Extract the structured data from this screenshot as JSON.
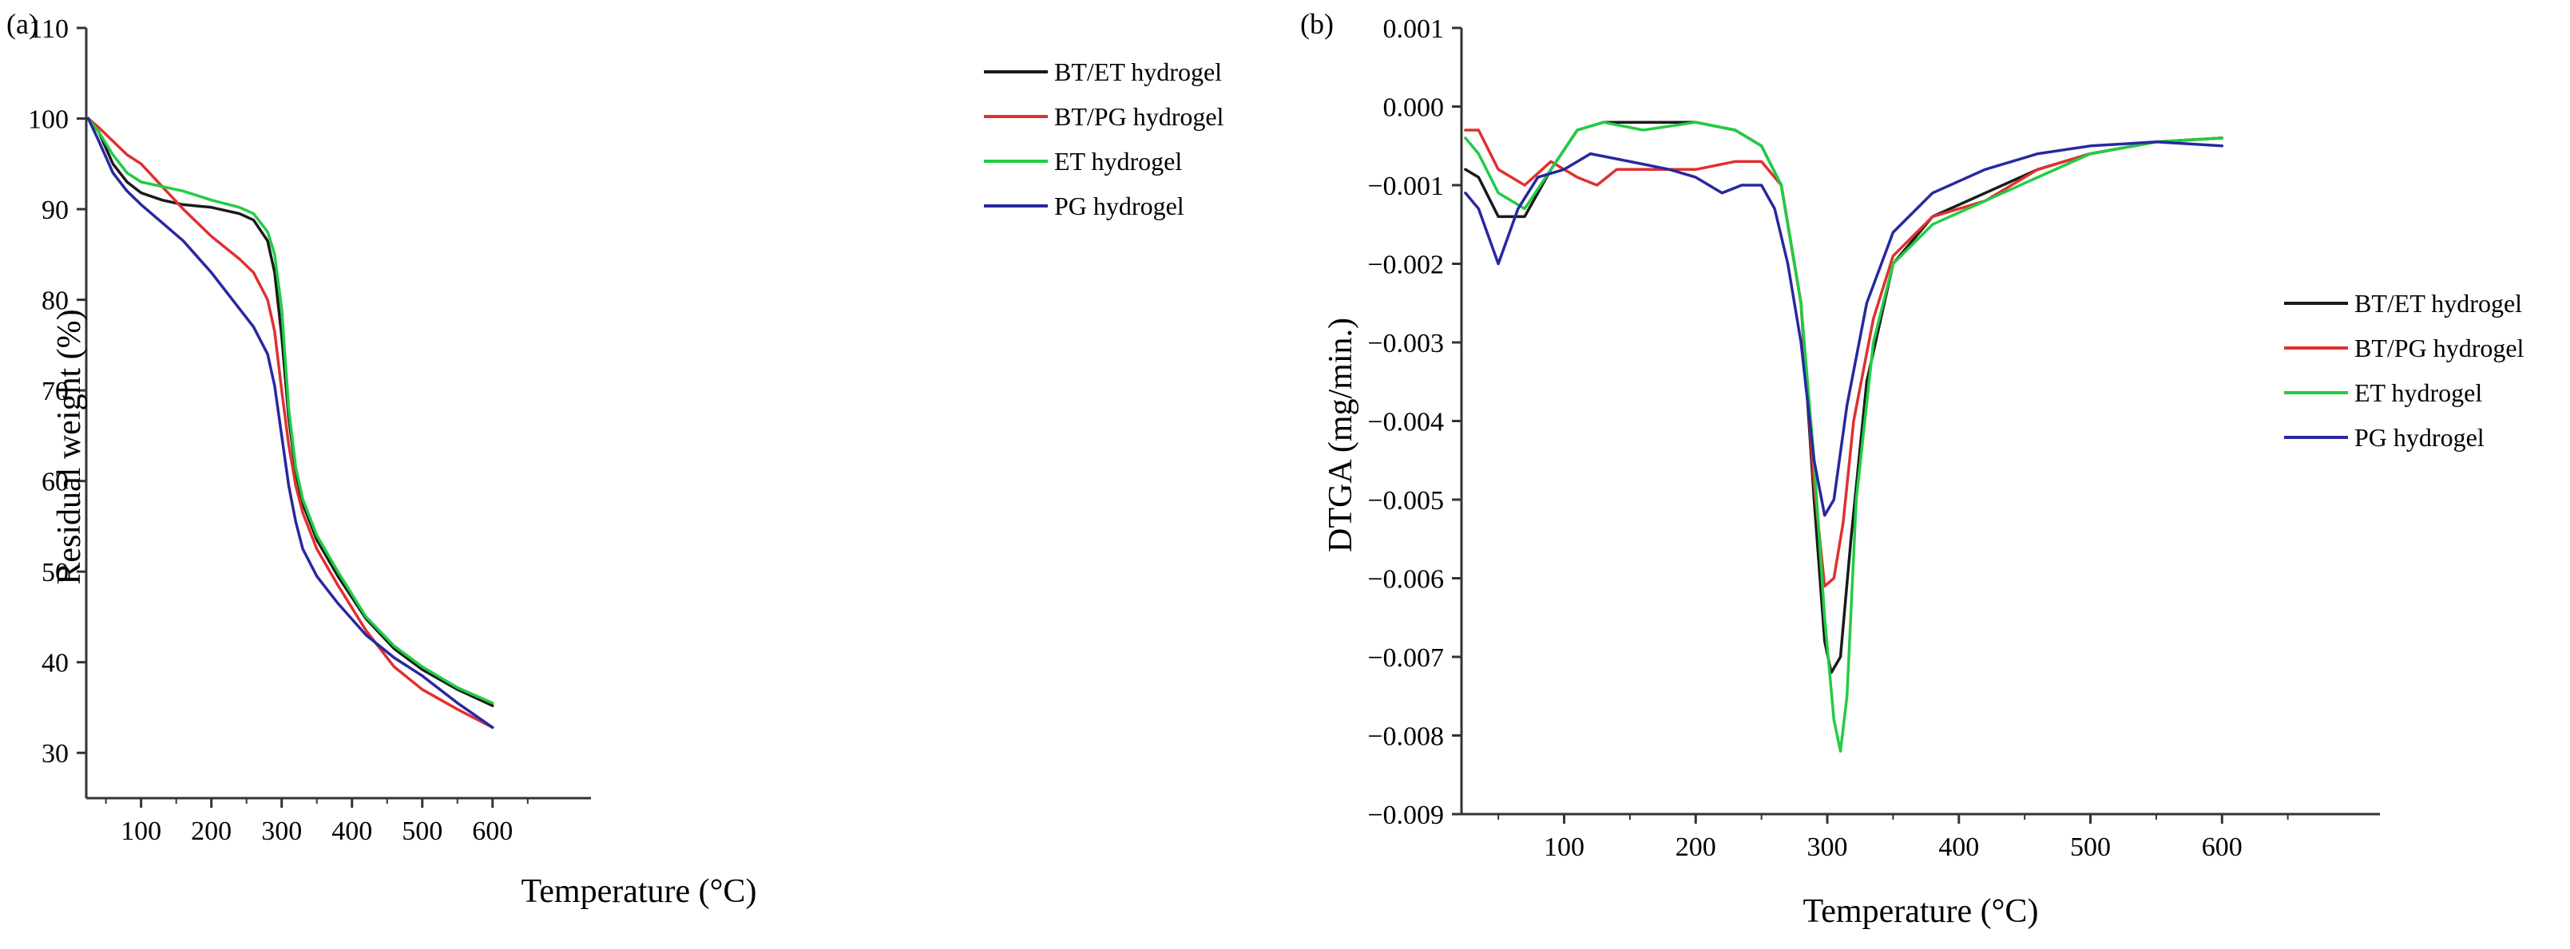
{
  "chart_data": [
    {
      "type": "line",
      "panel_label": "(a)",
      "title": "",
      "xlabel": "Temperature (°C)",
      "ylabel": "Residual weight (%)",
      "xlim": [
        22,
        740
      ],
      "ylim": [
        25,
        110
      ],
      "xticks": [
        100,
        200,
        300,
        400,
        500,
        600
      ],
      "xtick_labels": [
        "100",
        "200",
        "300",
        "400",
        "500",
        "600"
      ],
      "yticks": [
        30,
        40,
        50,
        60,
        70,
        80,
        90,
        100,
        110
      ],
      "ytick_labels": [
        "30",
        "40",
        "50",
        "60",
        "70",
        "80",
        "90",
        "100",
        "110"
      ],
      "legend_position": "top-right",
      "series": [
        {
          "name": "BT/ET hydrogel",
          "color": "#1a1a1a",
          "x": [
            25,
            40,
            60,
            80,
            100,
            130,
            160,
            200,
            240,
            260,
            280,
            290,
            300,
            310,
            320,
            330,
            350,
            380,
            420,
            460,
            500,
            550,
            600
          ],
          "y": [
            100,
            98.5,
            95,
            93,
            91.8,
            91,
            90.5,
            90.2,
            89.5,
            88.8,
            86.5,
            83,
            76,
            67,
            61,
            57.5,
            53.5,
            49.5,
            44.8,
            41.5,
            39.2,
            37,
            35.2
          ]
        },
        {
          "name": "BT/PG hydrogel",
          "color": "#e03030",
          "x": [
            25,
            40,
            60,
            80,
            100,
            130,
            160,
            200,
            240,
            260,
            280,
            290,
            300,
            310,
            320,
            330,
            350,
            380,
            420,
            460,
            500,
            550,
            600
          ],
          "y": [
            100,
            99,
            97.5,
            96,
            95,
            92.5,
            90,
            87,
            84.5,
            83,
            80,
            76.5,
            70,
            64,
            59.5,
            56.5,
            52.5,
            48.5,
            43.5,
            39.5,
            37,
            34.8,
            32.8
          ]
        },
        {
          "name": "ET hydrogel",
          "color": "#22cc44",
          "x": [
            25,
            40,
            60,
            80,
            100,
            130,
            160,
            200,
            240,
            260,
            280,
            290,
            300,
            310,
            320,
            330,
            350,
            380,
            420,
            460,
            500,
            550,
            600
          ],
          "y": [
            100,
            98.5,
            96,
            94,
            93,
            92.5,
            92,
            91,
            90.2,
            89.5,
            87.5,
            85,
            79,
            68,
            61.5,
            58,
            54,
            50,
            45,
            41.8,
            39.5,
            37.2,
            35.5
          ]
        },
        {
          "name": "PG hydrogel",
          "color": "#2828a0",
          "x": [
            25,
            40,
            60,
            80,
            100,
            130,
            160,
            200,
            240,
            260,
            280,
            290,
            300,
            310,
            320,
            330,
            350,
            380,
            420,
            460,
            500,
            550,
            600
          ],
          "y": [
            100,
            97.5,
            94,
            92,
            90.5,
            88.5,
            86.5,
            83,
            79,
            77,
            74,
            70.5,
            65,
            59.5,
            55.5,
            52.5,
            49.5,
            46.5,
            43,
            40.5,
            38.5,
            35.5,
            32.8
          ]
        }
      ]
    },
    {
      "type": "line",
      "panel_label": "(b)",
      "title": "",
      "xlabel": "Temperature (°C)",
      "ylabel": "DTGA (mg/min.)",
      "xlim": [
        22,
        720
      ],
      "ylim": [
        -0.009,
        0.001
      ],
      "xticks": [
        100,
        200,
        300,
        400,
        500,
        600
      ],
      "xtick_labels": [
        "100",
        "200",
        "300",
        "400",
        "500",
        "600"
      ],
      "yticks": [
        0.001,
        0.0,
        -0.001,
        -0.002,
        -0.003,
        -0.004,
        -0.005,
        -0.006,
        -0.007,
        -0.008,
        -0.009
      ],
      "ytick_labels": [
        "0.001",
        "0.000",
        "−0.001",
        "−0.002",
        "−0.003",
        "−0.004",
        "−0.005",
        "−0.006",
        "−0.007",
        "−0.008",
        "−0.009"
      ],
      "legend_position": "right",
      "series": [
        {
          "name": "BT/ET hydrogel",
          "color": "#1a1a1a",
          "x": [
            25,
            35,
            50,
            70,
            90,
            110,
            130,
            160,
            200,
            230,
            250,
            265,
            280,
            290,
            298,
            303,
            310,
            318,
            330,
            350,
            380,
            420,
            460,
            500,
            550,
            600
          ],
          "y": [
            -0.0008,
            -0.0009,
            -0.0014,
            -0.0014,
            -0.0008,
            -0.0003,
            -0.0002,
            -0.0002,
            -0.0002,
            -0.0003,
            -0.0005,
            -0.001,
            -0.0025,
            -0.005,
            -0.0068,
            -0.0072,
            -0.007,
            -0.0055,
            -0.0035,
            -0.002,
            -0.0014,
            -0.0011,
            -0.0008,
            -0.0006,
            -0.00045,
            -0.0004
          ]
        },
        {
          "name": "BT/PG hydrogel",
          "color": "#e03030",
          "x": [
            25,
            35,
            50,
            70,
            90,
            110,
            125,
            140,
            170,
            200,
            230,
            250,
            265,
            280,
            290,
            298,
            305,
            312,
            320,
            335,
            350,
            380,
            420,
            460,
            500,
            550,
            600
          ],
          "y": [
            -0.0003,
            -0.0003,
            -0.0008,
            -0.001,
            -0.0007,
            -0.0009,
            -0.001,
            -0.0008,
            -0.0008,
            -0.0008,
            -0.0007,
            -0.0007,
            -0.001,
            -0.0025,
            -0.0048,
            -0.0061,
            -0.006,
            -0.0053,
            -0.004,
            -0.0027,
            -0.0019,
            -0.0014,
            -0.0012,
            -0.0008,
            -0.0006,
            -0.00045,
            -0.0004
          ]
        },
        {
          "name": "ET hydrogel",
          "color": "#22cc44",
          "x": [
            25,
            35,
            50,
            70,
            90,
            110,
            130,
            160,
            200,
            230,
            250,
            265,
            280,
            290,
            298,
            305,
            310,
            315,
            322,
            335,
            350,
            380,
            420,
            460,
            500,
            550,
            600
          ],
          "y": [
            -0.0004,
            -0.0006,
            -0.0011,
            -0.0013,
            -0.0008,
            -0.0003,
            -0.0002,
            -0.0003,
            -0.0002,
            -0.0003,
            -0.0005,
            -0.001,
            -0.0025,
            -0.0045,
            -0.0065,
            -0.0078,
            -0.0082,
            -0.0075,
            -0.005,
            -0.003,
            -0.002,
            -0.0015,
            -0.0012,
            -0.0009,
            -0.0006,
            -0.00045,
            -0.0004
          ]
        },
        {
          "name": "PG hydrogel",
          "color": "#2828a0",
          "x": [
            25,
            35,
            50,
            65,
            80,
            100,
            120,
            150,
            180,
            200,
            220,
            235,
            250,
            260,
            270,
            280,
            290,
            298,
            305,
            315,
            330,
            350,
            380,
            420,
            460,
            500,
            550,
            600
          ],
          "y": [
            -0.0011,
            -0.0013,
            -0.002,
            -0.0013,
            -0.0009,
            -0.0008,
            -0.0006,
            -0.0007,
            -0.0008,
            -0.0009,
            -0.0011,
            -0.001,
            -0.001,
            -0.0013,
            -0.002,
            -0.003,
            -0.0045,
            -0.0052,
            -0.005,
            -0.0038,
            -0.0025,
            -0.0016,
            -0.0011,
            -0.0008,
            -0.0006,
            -0.0005,
            -0.00045,
            -0.0005
          ]
        }
      ]
    }
  ]
}
